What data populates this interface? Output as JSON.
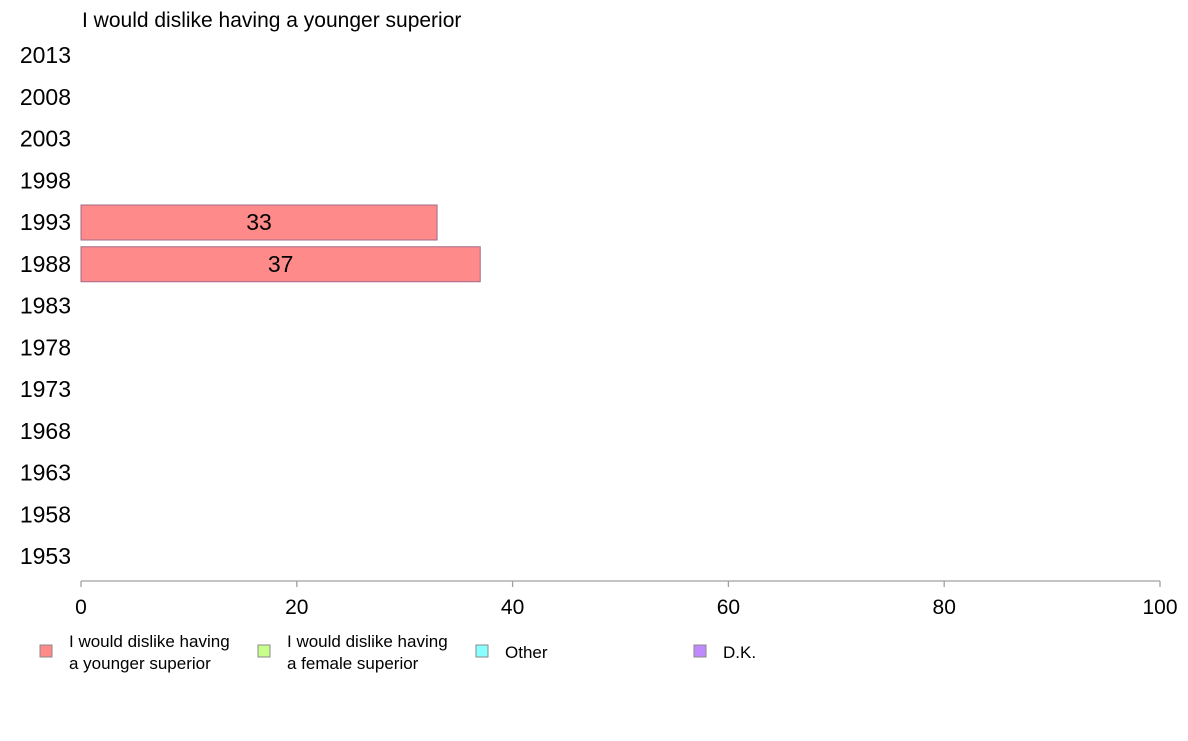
{
  "chart_data": {
    "type": "bar",
    "orientation": "horizontal",
    "title": "I would dislike having a younger superior",
    "xlabel": "",
    "ylabel": "",
    "categories": [
      "2013",
      "2008",
      "2003",
      "1998",
      "1993",
      "1988",
      "1983",
      "1978",
      "1973",
      "1968",
      "1963",
      "1958",
      "1953"
    ],
    "xlim": [
      0,
      100
    ],
    "xticks": [
      0,
      20,
      40,
      60,
      80,
      100
    ],
    "grid": false,
    "legend_position": "bottom",
    "series": [
      {
        "name": "I would dislike having a younger superior",
        "legend_lines": [
          "I would dislike having",
          "a younger superior"
        ],
        "color": "#ff8a8a",
        "values": [
          null,
          null,
          null,
          null,
          33,
          37,
          null,
          null,
          null,
          null,
          null,
          null,
          null
        ]
      },
      {
        "name": "I would dislike having a female superior",
        "legend_lines": [
          "I would dislike having",
          "a female superior"
        ],
        "color": "#c8ff8a",
        "values": [
          null,
          null,
          null,
          null,
          null,
          null,
          null,
          null,
          null,
          null,
          null,
          null,
          null
        ]
      },
      {
        "name": "Other",
        "legend_lines": [
          "Other"
        ],
        "color": "#8affff",
        "values": [
          null,
          null,
          null,
          null,
          null,
          null,
          null,
          null,
          null,
          null,
          null,
          null,
          null
        ]
      },
      {
        "name": "D.K.",
        "legend_lines": [
          "D.K."
        ],
        "color": "#c08aff",
        "values": [
          null,
          null,
          null,
          null,
          null,
          null,
          null,
          null,
          null,
          null,
          null,
          null,
          null
        ]
      }
    ]
  }
}
